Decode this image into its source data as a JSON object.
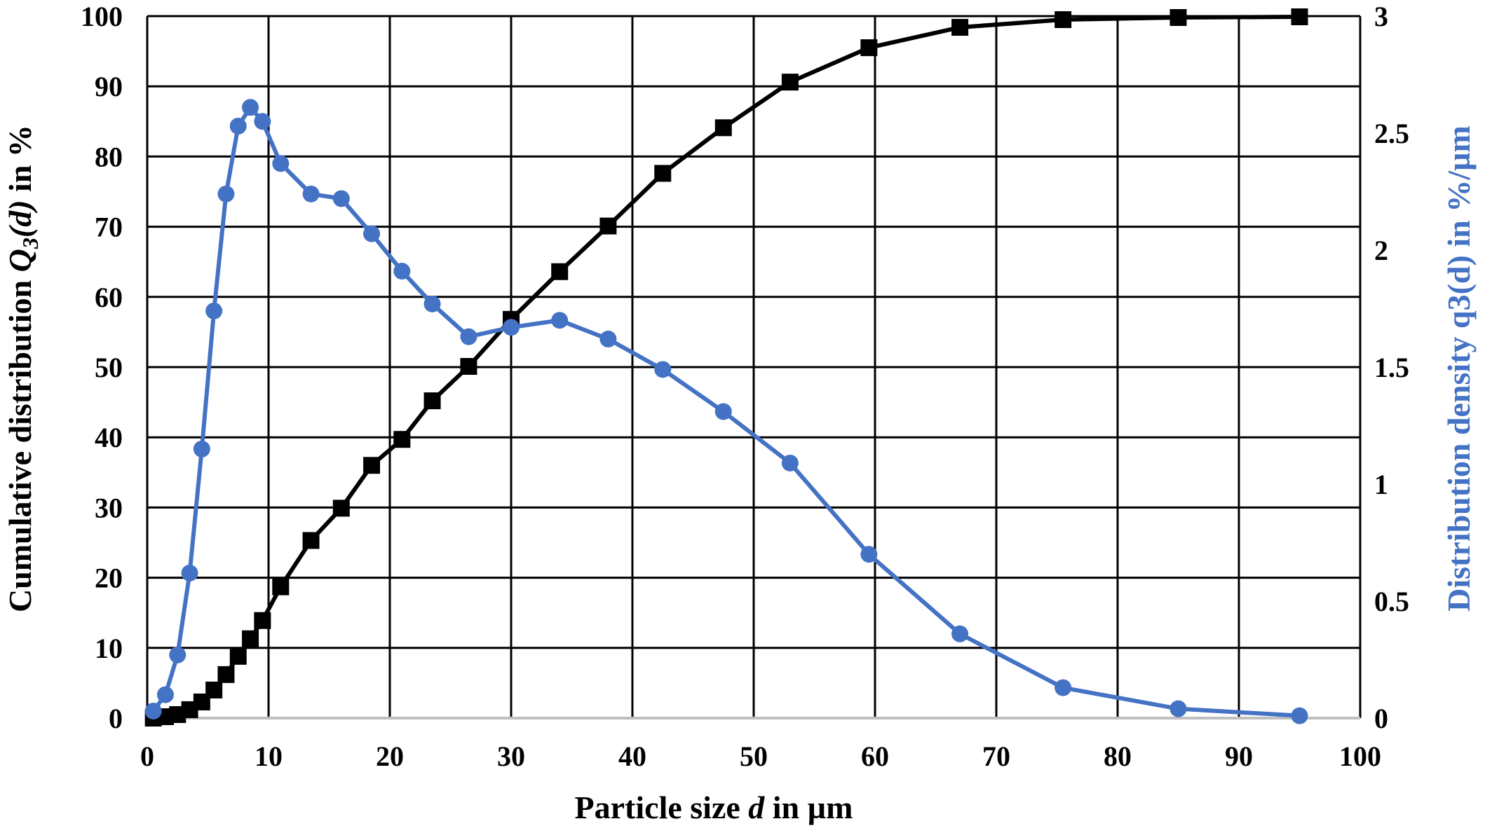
{
  "chart_data": {
    "type": "line",
    "xlabel": {
      "pre": "Particle size ",
      "var": "d",
      "post": " in µm"
    },
    "ylabel_left": {
      "pre": "Cumulative distribution ",
      "var": "Q",
      "sub": "3",
      "arg": "(d)",
      "post": " in %"
    },
    "ylabel_right": "Distribution density q3(d) in %/µm",
    "xlim": [
      0,
      100
    ],
    "ylim_left": [
      0,
      100
    ],
    "ylim_right": [
      0,
      3
    ],
    "x_ticks": [
      "0",
      "10",
      "20",
      "30",
      "40",
      "50",
      "60",
      "70",
      "80",
      "90",
      "100"
    ],
    "y_left_ticks": [
      "0",
      "10",
      "20",
      "30",
      "40",
      "50",
      "60",
      "70",
      "80",
      "90",
      "100"
    ],
    "y_right_ticks": [
      "0",
      "0.5",
      "1",
      "1.5",
      "2",
      "2.5",
      "3"
    ],
    "grid": true,
    "series": [
      {
        "axis": "left",
        "marker": "square",
        "color": "#000000",
        "x": [
          0.5,
          1.5,
          2.5,
          3.5,
          4.5,
          5.5,
          6.5,
          7.5,
          8.5,
          9.5,
          11,
          13.5,
          16,
          18.5,
          21,
          23.5,
          26.5,
          30,
          34,
          38,
          42.5,
          47.5,
          53,
          59.5,
          67,
          75.5,
          85,
          95
        ],
        "y": [
          0,
          0.2,
          0.5,
          1.2,
          2.3,
          4,
          6.2,
          8.8,
          11.3,
          13.9,
          18.7,
          25.3,
          29.9,
          36,
          39.7,
          45.2,
          50.1,
          56.8,
          63.6,
          70.1,
          77.6,
          84.1,
          90.6,
          95.5,
          98.4,
          99.5,
          99.8,
          99.9
        ]
      },
      {
        "axis": "right",
        "marker": "circle",
        "color": "#4472c4",
        "x": [
          0.5,
          1.5,
          2.5,
          3.5,
          4.5,
          5.5,
          6.5,
          7.5,
          8.5,
          9.5,
          11,
          13.5,
          16,
          18.5,
          21,
          23.5,
          26.5,
          30,
          34,
          38,
          42.5,
          47.5,
          53,
          59.5,
          67,
          75.5,
          85,
          95
        ],
        "y": [
          0.03,
          0.1,
          0.27,
          0.62,
          1.15,
          1.74,
          2.24,
          2.53,
          2.61,
          2.55,
          2.37,
          2.24,
          2.22,
          2.07,
          1.91,
          1.77,
          1.63,
          1.67,
          1.7,
          1.62,
          1.49,
          1.31,
          1.09,
          0.7,
          0.36,
          0.13,
          0.04,
          0.01
        ]
      }
    ]
  },
  "colors": {
    "grid": "#000000",
    "baseline": "#bfbfbf",
    "series_left": "#000000",
    "series_right": "#4472c4"
  }
}
